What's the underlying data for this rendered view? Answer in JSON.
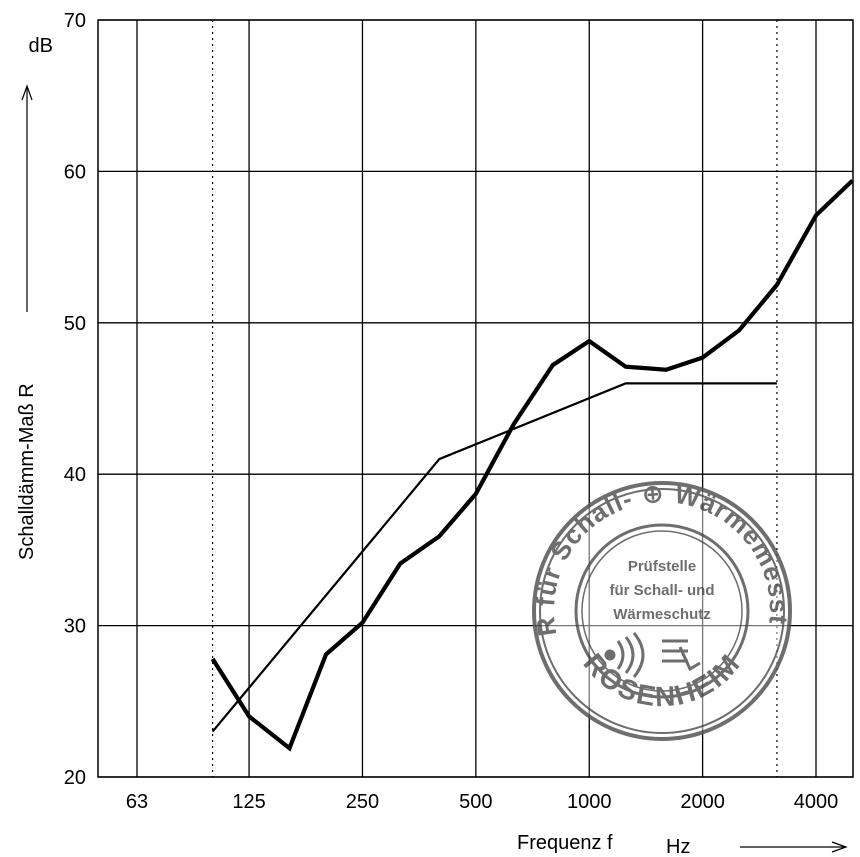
{
  "chart_data": {
    "type": "line",
    "title": "",
    "xlabel": "Frequenz f",
    "xunit": "Hz",
    "ylabel": "Schalldämm-Maß R",
    "yunit": "dB",
    "xscale": "log",
    "xticks": [
      "63",
      "125",
      "250",
      "500",
      "1000",
      "2000",
      "4000"
    ],
    "yticks": [
      "20",
      "30",
      "40",
      "50",
      "60",
      "70"
    ],
    "ylim": [
      20,
      70
    ],
    "xlim": [
      50,
      5000
    ],
    "grid": true,
    "reference_lines_x": [
      100,
      3150
    ],
    "series": [
      {
        "style": "thick",
        "x": [
          100,
          125,
          160,
          200,
          250,
          315,
          400,
          500,
          630,
          800,
          1000,
          1250,
          1600,
          2000,
          2500,
          3150,
          4000,
          5000
        ],
        "y": [
          27.8,
          24.0,
          21.9,
          28.1,
          30.2,
          34.1,
          35.9,
          38.7,
          43.3,
          47.2,
          48.8,
          47.1,
          46.9,
          47.7,
          49.5,
          52.5,
          57.1,
          59.4
        ]
      },
      {
        "style": "thin",
        "x": [
          100,
          400,
          1250,
          3150
        ],
        "y": [
          23.0,
          41.0,
          46.0,
          46.0
        ]
      }
    ]
  },
  "stamp": {
    "outer_text": "LABOR für Schall- ⊕ Wärmemesstechnik",
    "inner_lines": [
      "Prüfstelle",
      "für Schall- und",
      "Wärmeschutz"
    ],
    "bottom_text": "ROSENHEIM"
  }
}
